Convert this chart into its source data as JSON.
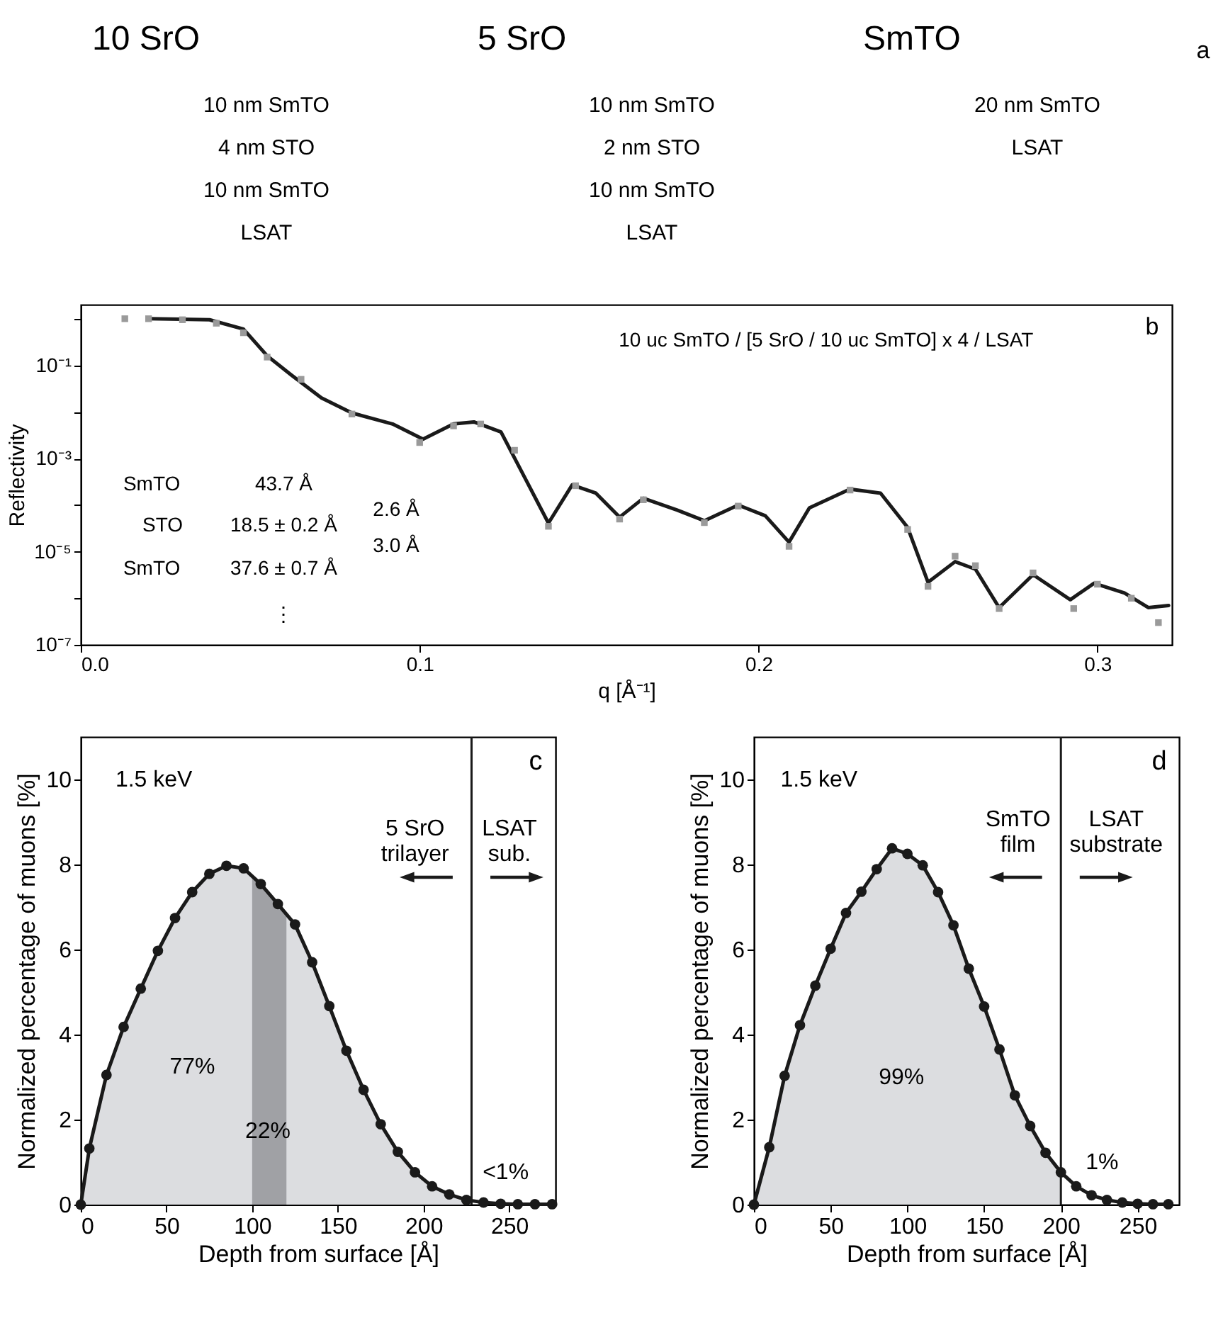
{
  "chart_data": [
    {
      "type": "other",
      "title": "10 SrO",
      "annotations": [
        "10 nm SmTO",
        "4 nm STO",
        "10 nm SmTO",
        "LSAT"
      ]
    },
    {
      "type": "other",
      "title": "5 SrO",
      "annotations": [
        "10 nm SmTO",
        "2 nm STO",
        "10 nm SmTO",
        "LSAT"
      ]
    },
    {
      "type": "other",
      "title": "SmTO",
      "annotations": [
        "20 nm SmTO",
        "LSAT",
        {
          "text": "a"
        }
      ]
    },
    {
      "type": "line",
      "ylabel": "Reflectivity",
      "xlabel": "q [Å⁻¹]",
      "log": "y",
      "xlim": [
        0,
        0.322
      ],
      "ylim": [
        1e-07,
        2
      ],
      "xticks": [
        {
          "value": 0,
          "label": "0.0"
        },
        0.1,
        0.2,
        0.3
      ],
      "yticks": [
        {
          "value": 1e-07,
          "label": "10⁻⁷"
        },
        {
          "value": 1e-06,
          "label": null
        },
        {
          "value": 1e-05,
          "label": "10⁻⁵"
        },
        {
          "value": 0.0001,
          "label": null
        },
        {
          "value": 0.001,
          "label": "10⁻³"
        },
        {
          "value": 0.01,
          "label": null
        },
        {
          "value": 0.1,
          "label": "10⁻¹"
        },
        {
          "value": 1,
          "label": null
        }
      ],
      "series": [
        {
          "type": "line",
          "color": "#1a1a1a",
          "x": [
            0.02,
            0.038,
            0.048,
            0.055,
            0.062,
            0.071,
            0.08,
            0.092,
            0.101,
            0.11,
            0.116,
            0.124,
            0.131,
            0.138,
            0.145,
            0.152,
            0.159,
            0.166,
            0.176,
            0.184,
            0.194,
            0.202,
            0.209,
            0.215,
            0.227,
            0.236,
            0.244,
            0.25,
            0.258,
            0.264,
            0.271,
            0.281,
            0.292,
            0.299,
            0.308,
            0.315,
            0.321
          ],
          "values": [
            1.0,
            0.95,
            0.6,
            0.16,
            0.063,
            0.02,
            0.0095,
            0.0055,
            0.0026,
            0.0055,
            0.0061,
            0.0037,
            0.00039,
            4.1e-05,
            0.00027,
            0.00018,
            5.5e-05,
            0.00014,
            7.8e-05,
            4.6e-05,
            0.0001,
            5.9e-05,
            1.6e-05,
            8.7e-05,
            0.00022,
            0.00018,
            3.3e-05,
            2.2e-06,
            6.1e-06,
            4.2e-06,
            6.3e-07,
            3.2e-06,
            9.3e-07,
            2.1e-06,
            1.3e-06,
            6.3e-07,
            7e-07
          ]
        },
        {
          "type": "scatter",
          "marker": "square",
          "color": "#9a9a9a",
          "x": [
            0.013,
            0.02,
            0.03,
            0.04,
            0.048,
            0.055,
            0.065,
            0.08,
            0.1,
            0.11,
            0.118,
            0.128,
            0.138,
            0.146,
            0.159,
            0.166,
            0.184,
            0.194,
            0.209,
            0.227,
            0.244,
            0.25,
            0.258,
            0.264,
            0.271,
            0.281,
            0.293,
            0.3,
            0.31,
            0.318
          ],
          "values": [
            1.0,
            1.0,
            0.95,
            0.8,
            0.5,
            0.15,
            0.05,
            0.009,
            0.0022,
            0.005,
            0.0055,
            0.0015,
            3.5e-05,
            0.00026,
            5e-05,
            0.00013,
            4.2e-05,
            9.5e-05,
            1.3e-05,
            0.00021,
            3e-05,
            1.8e-06,
            8e-06,
            5e-06,
            6e-07,
            3.5e-06,
            6e-07,
            2e-06,
            1e-06,
            3e-07
          ]
        }
      ],
      "annotations": [
        "10 uc SmTO / [5 SrO / 10 uc SmTO] x 4 / LSAT",
        "SmTO",
        "43.7 Å",
        "STO",
        "18.5 ± 0.2 Å",
        "SmTO",
        "37.6 ± 0.7 Å",
        "2.6 Å",
        "3.0 Å",
        "⋮",
        {
          "text": "b"
        }
      ]
    },
    {
      "type": "line",
      "xlabel": "Depth from surface [Å]",
      "ylabel": "Normalized percentage of muons [%]",
      "xlim": [
        0,
        277
      ],
      "ylim": [
        0,
        11
      ],
      "xticks": [
        0,
        50,
        100,
        150,
        200,
        250
      ],
      "yticks": [
        0,
        2,
        4,
        6,
        8,
        10
      ],
      "x": [
        0,
        5,
        15,
        25,
        35,
        45,
        55,
        65,
        75,
        85,
        95,
        105,
        115,
        125,
        135,
        145,
        155,
        165,
        175,
        185,
        195,
        205,
        215,
        225,
        235,
        245,
        255,
        265,
        275
      ],
      "series": [
        {
          "type": "area",
          "color": "#dcdde0",
          "x": [
            0,
            5,
            15,
            25,
            35,
            45,
            55,
            65,
            75,
            85,
            95,
            125,
            135,
            145,
            155,
            165,
            175,
            185,
            195,
            205,
            215,
            225
          ],
          "values": [
            0,
            1.32,
            3.05,
            4.18,
            5.08,
            5.97,
            6.74,
            7.35,
            7.78,
            7.97,
            7.91,
            6.59,
            5.7,
            4.67,
            3.62,
            2.7,
            1.89,
            1.24,
            0.76,
            0.43,
            0.24,
            0.11
          ]
        },
        {
          "type": "area",
          "color": "#a0a1a5",
          "x": [
            100,
            105,
            115,
            120
          ],
          "values": [
            7.7,
            7.54,
            7.07,
            6.83
          ]
        },
        {
          "color": "#1a1a1a",
          "marker": "circle",
          "values": [
            0,
            1.32,
            3.05,
            4.18,
            5.08,
            5.97,
            6.74,
            7.35,
            7.78,
            7.97,
            7.91,
            7.54,
            7.07,
            6.59,
            5.7,
            4.67,
            3.62,
            2.7,
            1.89,
            1.24,
            0.76,
            0.43,
            0.24,
            0.11,
            0.05,
            0.02,
            0.01,
            0.01,
            0.01
          ]
        }
      ],
      "ref_lines": [
        {
          "axis": "x",
          "value": 228,
          "color": "#1a1a1a"
        }
      ],
      "annotations": [
        "1.5 keV",
        "5 SrO\ntrilayer",
        "LSAT\nsub.",
        "77%",
        "22%",
        "<1%",
        {
          "text": "c"
        }
      ]
    },
    {
      "type": "line",
      "xlabel": "Depth from surface [Å]",
      "ylabel": "Normalized percentage of muons [%]",
      "xlim": [
        0,
        277
      ],
      "ylim": [
        0,
        11
      ],
      "xticks": [
        0,
        50,
        100,
        150,
        200,
        250
      ],
      "yticks": [
        0,
        2,
        4,
        6,
        8,
        10
      ],
      "x": [
        0,
        10,
        20,
        30,
        40,
        50,
        60,
        70,
        80,
        90,
        100,
        110,
        120,
        130,
        140,
        150,
        160,
        170,
        180,
        190,
        200,
        210,
        220,
        230,
        240,
        250,
        260,
        270
      ],
      "series": [
        {
          "type": "area",
          "color": "#dcdde0",
          "x": [
            0,
            10,
            20,
            30,
            40,
            50,
            60,
            70,
            80,
            90,
            100,
            110,
            120,
            130,
            140,
            150,
            160,
            170,
            180,
            190,
            200
          ],
          "values": [
            0,
            1.35,
            3.03,
            4.22,
            5.15,
            6.02,
            6.86,
            7.36,
            7.89,
            8.38,
            8.25,
            7.98,
            7.35,
            6.57,
            5.55,
            4.66,
            3.65,
            2.57,
            1.85,
            1.22,
            0.76
          ]
        },
        {
          "color": "#1a1a1a",
          "marker": "circle",
          "values": [
            0,
            1.35,
            3.03,
            4.22,
            5.15,
            6.02,
            6.86,
            7.36,
            7.89,
            8.38,
            8.25,
            7.98,
            7.35,
            6.57,
            5.55,
            4.66,
            3.65,
            2.57,
            1.85,
            1.22,
            0.76,
            0.43,
            0.22,
            0.11,
            0.05,
            0.02,
            0.01,
            0.01
          ]
        }
      ],
      "ref_lines": [
        {
          "axis": "x",
          "value": 200,
          "color": "#1a1a1a"
        }
      ],
      "annotations": [
        "1.5 keV",
        "SmTO\nfilm",
        "LSAT\nsubstrate",
        "99%",
        "1%",
        {
          "text": "d"
        }
      ]
    }
  ]
}
